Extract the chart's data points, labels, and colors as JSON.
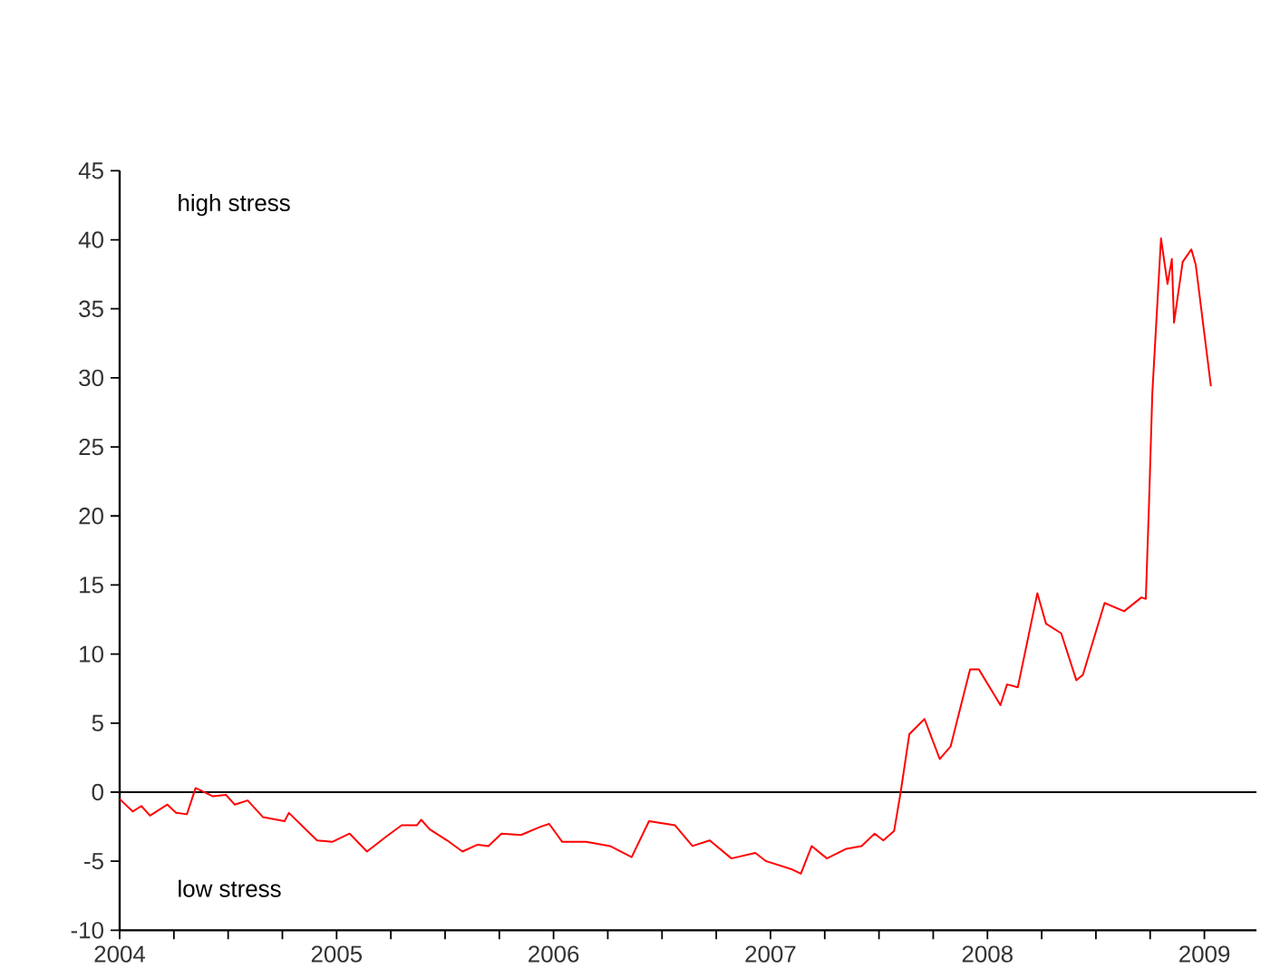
{
  "chart_data": {
    "type": "line",
    "annotations": [
      "high stress",
      "low stress"
    ],
    "x": [
      2004.0,
      2004.06,
      2004.1,
      2004.14,
      2004.22,
      2004.26,
      2004.31,
      2004.35,
      2004.43,
      2004.49,
      2004.53,
      2004.59,
      2004.66,
      2004.76,
      2004.78,
      2004.91,
      2004.98,
      2005.06,
      2005.14,
      2005.23,
      2005.3,
      2005.37,
      2005.39,
      2005.43,
      2005.51,
      2005.58,
      2005.65,
      2005.7,
      2005.76,
      2005.85,
      2005.94,
      2005.98,
      2006.04,
      2006.15,
      2006.26,
      2006.36,
      2006.44,
      2006.56,
      2006.64,
      2006.72,
      2006.82,
      2006.93,
      2006.98,
      2007.1,
      2007.14,
      2007.19,
      2007.26,
      2007.35,
      2007.42,
      2007.48,
      2007.52,
      2007.57,
      2007.6,
      2007.64,
      2007.71,
      2007.78,
      2007.83,
      2007.92,
      2007.96,
      2008.06,
      2008.09,
      2008.14,
      2008.23,
      2008.27,
      2008.34,
      2008.41,
      2008.44,
      2008.54,
      2008.63,
      2008.71,
      2008.73,
      2008.745,
      2008.76,
      2008.8,
      2008.83,
      2008.85,
      2008.86,
      2008.9,
      2008.94,
      2008.96,
      2009.03
    ],
    "series": [
      {
        "color": "#ff0000",
        "values": [
          -0.5,
          -1.4,
          -1.0,
          -1.7,
          -0.9,
          -1.5,
          -1.6,
          0.3,
          -0.3,
          -0.2,
          -0.9,
          -0.6,
          -1.8,
          -2.1,
          -1.5,
          -3.5,
          -3.6,
          -3.0,
          -4.3,
          -3.2,
          -2.4,
          -2.4,
          -2.0,
          -2.7,
          -3.5,
          -4.3,
          -3.8,
          -3.9,
          -3.0,
          -3.1,
          -2.5,
          -2.3,
          -3.6,
          -3.6,
          -3.9,
          -4.7,
          -2.1,
          -2.4,
          -3.9,
          -3.5,
          -4.8,
          -4.4,
          -5.0,
          -5.6,
          -5.9,
          -3.9,
          -4.8,
          -4.1,
          -3.9,
          -3.0,
          -3.5,
          -2.8,
          0,
          4.2,
          5.3,
          2.4,
          3.3,
          8.9,
          8.9,
          6.3,
          7.8,
          7.6,
          14.4,
          12.2,
          11.5,
          8.1,
          8.5,
          13.7,
          13.1,
          14.1,
          14.0,
          21,
          28.9,
          40.1,
          36.8,
          38.6,
          34.0,
          38.4,
          39.3,
          38.2,
          29.4
        ]
      }
    ],
    "xlim": [
      2004,
      2009.24
    ],
    "ylim": [
      -10,
      45
    ],
    "xticks": [
      2004,
      {
        "value": 2004.25,
        "label": null
      },
      {
        "value": 2004.5,
        "label": null
      },
      {
        "value": 2004.75,
        "label": null
      },
      2005,
      {
        "value": 2005.25,
        "label": null
      },
      {
        "value": 2005.5,
        "label": null
      },
      {
        "value": 2005.75,
        "label": null
      },
      2006,
      {
        "value": 2006.25,
        "label": null
      },
      {
        "value": 2006.5,
        "label": null
      },
      {
        "value": 2006.75,
        "label": null
      },
      2007,
      {
        "value": 2007.25,
        "label": null
      },
      {
        "value": 2007.5,
        "label": null
      },
      {
        "value": 2007.75,
        "label": null
      },
      2008,
      {
        "value": 2008.25,
        "label": null
      },
      {
        "value": 2008.5,
        "label": null
      },
      {
        "value": 2008.75,
        "label": null
      },
      2009
    ],
    "yticks": [
      -10,
      -5,
      0,
      5,
      10,
      15,
      20,
      25,
      30,
      35,
      40,
      45
    ],
    "ref_lines": [
      {
        "axis": "y",
        "value": 0,
        "color": "#000000"
      }
    ]
  }
}
